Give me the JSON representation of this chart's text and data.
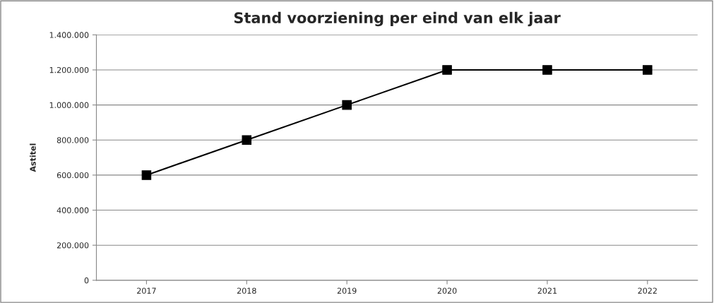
{
  "chart_data": {
    "type": "line",
    "title": "Stand voorziening per eind van elk jaar",
    "ylabel": "Astitel",
    "categories": [
      "2017",
      "2018",
      "2019",
      "2020",
      "2021",
      "2022"
    ],
    "series": [
      {
        "color": "#000000",
        "values": [
          600000,
          800000,
          1000000,
          1200000,
          1200000,
          1200000
        ]
      }
    ],
    "ylim": [
      0,
      1400000
    ],
    "yticks": [
      0,
      {
        "value": 200000,
        "label": "200.000"
      },
      {
        "value": 400000,
        "label": "400.000"
      },
      {
        "value": 600000,
        "label": "600.000"
      },
      {
        "value": 800000,
        "label": "800.000"
      },
      {
        "value": 1000000,
        "label": "1.000.000"
      },
      {
        "value": 1200000,
        "label": "1.200.000"
      },
      {
        "value": 1400000,
        "label": "1.400.000"
      }
    ],
    "grid": "y",
    "marker": "square",
    "line_style": "solid",
    "legend": false
  }
}
